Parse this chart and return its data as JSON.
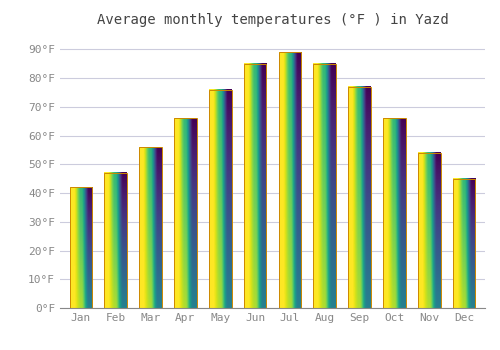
{
  "title": "Average monthly temperatures (°F ) in Yazd",
  "months": [
    "Jan",
    "Feb",
    "Mar",
    "Apr",
    "May",
    "Jun",
    "Jul",
    "Aug",
    "Sep",
    "Oct",
    "Nov",
    "Dec"
  ],
  "values": [
    42,
    47,
    56,
    66,
    76,
    85,
    89,
    85,
    77,
    66,
    54,
    45
  ],
  "bar_color_center": "#FFD04A",
  "bar_color_edge": "#FFA500",
  "bar_outline_color": "#CC8800",
  "ylim": [
    0,
    95
  ],
  "yticks": [
    0,
    10,
    20,
    30,
    40,
    50,
    60,
    70,
    80,
    90
  ],
  "ytick_labels": [
    "0°F",
    "10°F",
    "20°F",
    "30°F",
    "40°F",
    "50°F",
    "60°F",
    "70°F",
    "80°F",
    "90°F"
  ],
  "background_color": "#FFFFFF",
  "plot_bg_color": "#FFFFFF",
  "grid_color": "#CCCCDD",
  "title_fontsize": 10,
  "tick_fontsize": 8,
  "bar_width": 0.65,
  "tick_color": "#888888",
  "title_color": "#444444"
}
